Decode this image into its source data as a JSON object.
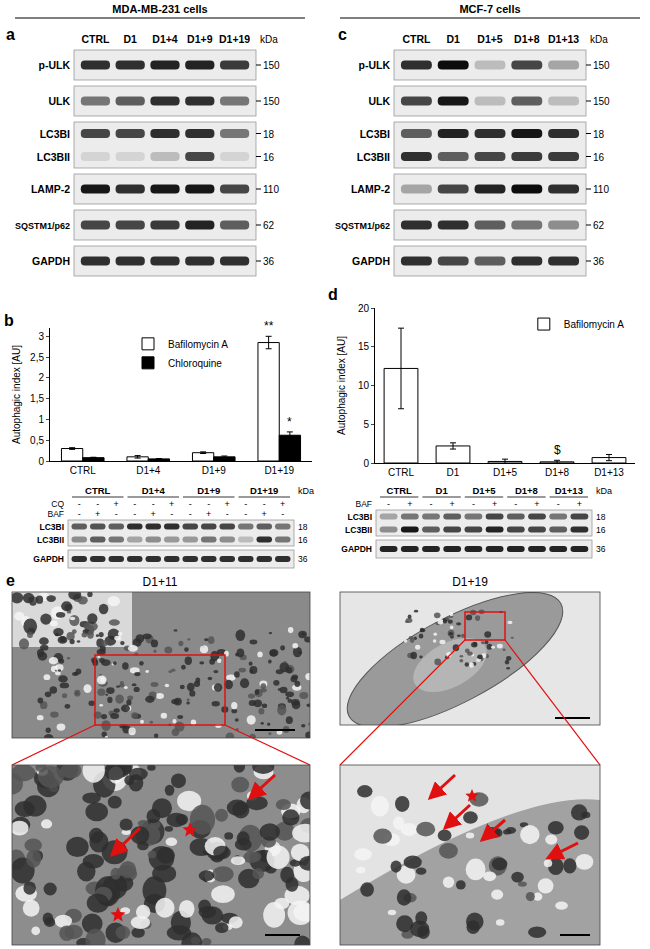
{
  "header": {
    "columns": [
      "MDA-MB-231 cells",
      "MCF-7 cells"
    ]
  },
  "blots": [
    {
      "panel": "a",
      "lanes": [
        "CTRL",
        "D1",
        "D1+4",
        "D1+9",
        "D1+19"
      ],
      "unit": "kDa",
      "rows": [
        {
          "bands": [
            {
              "label": "p-ULK",
              "kda": 150,
              "intensity": [
                0.8,
                0.8,
                0.85,
                0.85,
                0.75
              ]
            }
          ]
        },
        {
          "bands": [
            {
              "label": "ULK",
              "kda": 150,
              "intensity": [
                0.5,
                0.6,
                0.8,
                0.8,
                0.5
              ]
            }
          ]
        },
        {
          "bands": [
            {
              "label": "LC3BI",
              "kda": 18,
              "intensity": [
                0.7,
                0.7,
                0.8,
                0.8,
                0.5
              ]
            },
            {
              "label": "LC3BII",
              "kda": 16,
              "intensity": [
                0.1,
                0.1,
                0.2,
                0.7,
                0.1
              ]
            }
          ]
        },
        {
          "bands": [
            {
              "label": "LAMP-2",
              "kda": 110,
              "intensity": [
                0.9,
                0.8,
                0.9,
                0.9,
                0.7
              ]
            }
          ]
        },
        {
          "bands": [
            {
              "label": "SQSTM1/p62",
              "kda": 62,
              "intensity": [
                0.7,
                0.7,
                0.75,
                0.85,
                0.6
              ]
            }
          ]
        },
        {
          "bands": [
            {
              "label": "GAPDH",
              "kda": 36,
              "intensity": [
                0.8,
                0.8,
                0.8,
                0.8,
                0.8
              ]
            }
          ]
        }
      ]
    },
    {
      "panel": "c",
      "lanes": [
        "CTRL",
        "D1",
        "D1+5",
        "D1+8",
        "D1+13"
      ],
      "unit": "kDa",
      "rows": [
        {
          "bands": [
            {
              "label": "p-ULK",
              "kda": 150,
              "intensity": [
                0.8,
                0.95,
                0.2,
                0.7,
                0.3
              ]
            }
          ]
        },
        {
          "bands": [
            {
              "label": "ULK",
              "kda": 150,
              "intensity": [
                0.7,
                0.9,
                0.2,
                0.6,
                0.2
              ]
            }
          ]
        },
        {
          "bands": [
            {
              "label": "LC3BI",
              "kda": 18,
              "intensity": [
                0.6,
                0.85,
                0.8,
                0.9,
                0.8
              ]
            },
            {
              "label": "LC3BII",
              "kda": 16,
              "intensity": [
                0.8,
                0.6,
                0.7,
                0.75,
                0.75
              ]
            }
          ]
        },
        {
          "bands": [
            {
              "label": "LAMP-2",
              "kda": 110,
              "intensity": [
                0.3,
                0.7,
                0.85,
                0.95,
                0.8
              ]
            }
          ]
        },
        {
          "bands": [
            {
              "label": "SQSTM1/p62",
              "kda": 62,
              "intensity": [
                0.8,
                0.8,
                0.6,
                0.5,
                0.4
              ]
            }
          ]
        },
        {
          "bands": [
            {
              "label": "GAPDH",
              "kda": 36,
              "intensity": [
                0.8,
                0.7,
                0.6,
                0.8,
                0.8
              ]
            }
          ]
        }
      ]
    }
  ],
  "small_blots": [
    {
      "groups": [
        "CTRL",
        "D1+4",
        "D1+9",
        "D1+19"
      ],
      "unit": "kDa",
      "treatments": [
        {
          "label": "CQ",
          "signs": [
            "-",
            "-",
            "+",
            "-",
            "-",
            "+",
            "-",
            "-",
            "+",
            "-",
            "-",
            "+"
          ]
        },
        {
          "label": "BAF",
          "signs": [
            "-",
            "+",
            "-",
            "-",
            "+",
            "-",
            "-",
            "+",
            "-",
            "-",
            "+",
            "-"
          ]
        }
      ],
      "rows": [
        {
          "bands": [
            {
              "label": "LC3BI",
              "kda": 18,
              "intensity": [
                0.6,
                0.65,
                0.6,
                0.8,
                0.8,
                0.8,
                0.7,
                0.7,
                0.7,
                0.5,
                0.6,
                0.5
              ]
            },
            {
              "label": "LC3BII",
              "kda": 16,
              "intensity": [
                0.4,
                0.6,
                0.5,
                0.3,
                0.4,
                0.35,
                0.35,
                0.5,
                0.4,
                0.2,
                0.8,
                0.5
              ]
            }
          ]
        },
        {
          "bands": [
            {
              "label": "GAPDH",
              "kda": 36,
              "intensity": [
                0.8,
                0.8,
                0.8,
                0.8,
                0.8,
                0.8,
                0.8,
                0.8,
                0.8,
                0.8,
                0.8,
                0.8
              ]
            }
          ]
        }
      ]
    },
    {
      "groups": [
        "CTRL",
        "D1",
        "D1+5",
        "D1+8",
        "D1+13"
      ],
      "unit": "kDa",
      "treatments": [
        {
          "label": "BAF",
          "signs": [
            "-",
            "+",
            "-",
            "+",
            "-",
            "+",
            "-",
            "+",
            "-",
            "+"
          ]
        }
      ],
      "rows": [
        {
          "bands": [
            {
              "label": "LC3BI",
              "kda": 18,
              "intensity": [
                0.3,
                0.5,
                0.5,
                0.6,
                0.5,
                0.7,
                0.6,
                0.7,
                0.5,
                0.7
              ]
            },
            {
              "label": "LC3BII",
              "kda": 16,
              "intensity": [
                0.4,
                0.9,
                0.6,
                0.7,
                0.7,
                0.85,
                0.7,
                0.7,
                0.6,
                0.8
              ]
            }
          ]
        },
        {
          "bands": [
            {
              "label": "GAPDH",
              "kda": 36,
              "intensity": [
                0.85,
                0.85,
                0.85,
                0.85,
                0.85,
                0.85,
                0.85,
                0.85,
                0.85,
                0.85
              ]
            }
          ]
        }
      ]
    }
  ],
  "chart_panels": [
    "b",
    "d"
  ],
  "chart_data": [
    {
      "type": "bar",
      "categories": [
        "CTRL",
        "D1+4",
        "D1+9",
        "D1+19"
      ],
      "series": [
        {
          "name": "Bafilomycin A",
          "color": "#ffffff",
          "values": [
            0.3,
            0.1,
            0.2,
            2.85
          ],
          "errors": [
            0.02,
            0.03,
            0.02,
            0.15
          ]
        },
        {
          "name": "Chloroquine",
          "color": "#000000",
          "values": [
            0.08,
            0.05,
            0.1,
            0.62
          ],
          "errors": [
            0.01,
            0.01,
            0.02,
            0.08
          ]
        }
      ],
      "ylabel": "Autophagic index [AU]",
      "ylim": [
        0,
        3.2
      ],
      "yticks": [
        0,
        {
          "value": 0.5,
          "label": "0,5"
        },
        1,
        {
          "value": 1.5,
          "label": "1,5"
        },
        2,
        {
          "value": 2.5,
          "label": "2,5"
        },
        3
      ],
      "grid": false,
      "legend": "top center",
      "annotations": [
        {
          "text": "**",
          "x": "D1+19",
          "series": "Bafilomycin A"
        },
        {
          "text": "*",
          "x": "D1+19",
          "series": "Chloroquine"
        }
      ]
    },
    {
      "type": "bar",
      "categories": [
        "CTRL",
        "D1",
        "D1+5",
        "D1+8",
        "D1+13"
      ],
      "series": [
        {
          "name": "Bafilomycin A",
          "color": "#ffffff",
          "values": [
            12.2,
            2.2,
            0.2,
            0.15,
            0.7
          ],
          "errors": [
            5.2,
            0.4,
            0.3,
            0.2,
            0.4
          ]
        }
      ],
      "ylabel": "Autophagic index [AU]",
      "ylim": [
        0,
        20
      ],
      "yticks": [
        0,
        5,
        10,
        15,
        20
      ],
      "grid": false,
      "legend": "top right",
      "annotations": [
        {
          "text": "$",
          "x": "D1+8",
          "series": "Bafilomycin A"
        }
      ]
    }
  ],
  "em": {
    "panel": "e",
    "images": [
      {
        "label": "D1+11"
      },
      {
        "label": "D1+19"
      }
    ]
  }
}
